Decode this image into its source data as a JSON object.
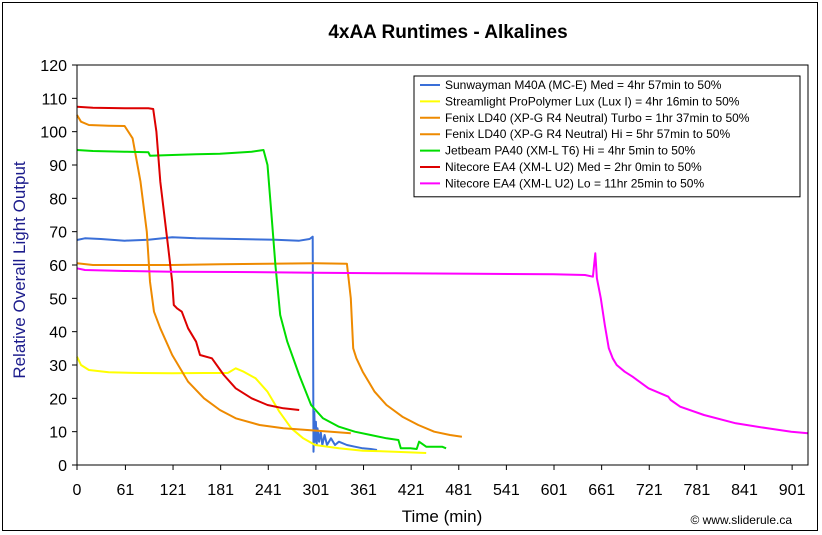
{
  "chart_data": {
    "type": "line",
    "title": "4xAA Runtimes - Alkalines",
    "xlabel": "Time (min)",
    "ylabel": "Relative Overall Light Output",
    "credit": "© www.sliderule.ca",
    "xlim": [
      0,
      921
    ],
    "ylim": [
      0,
      120
    ],
    "xticks": [
      0,
      61,
      121,
      181,
      241,
      301,
      361,
      421,
      481,
      541,
      601,
      661,
      721,
      781,
      841,
      901
    ],
    "yticks": [
      0,
      10,
      20,
      30,
      40,
      50,
      60,
      70,
      80,
      90,
      100,
      110,
      120
    ],
    "grid": false,
    "legend_position": "top-right",
    "series": [
      {
        "name": "Sunwayman M40A (MC-E) Med = 4hr 57min to 50%",
        "color": "#3a6fd8",
        "points": [
          [
            0,
            67.5
          ],
          [
            10,
            68
          ],
          [
            30,
            67.8
          ],
          [
            60,
            67.3
          ],
          [
            90,
            67.6
          ],
          [
            120,
            68.3
          ],
          [
            150,
            68
          ],
          [
            200,
            67.8
          ],
          [
            250,
            67.6
          ],
          [
            280,
            67.3
          ],
          [
            293,
            67.8
          ],
          [
            297,
            68.5
          ],
          [
            298,
            4
          ],
          [
            299,
            16
          ],
          [
            300,
            7
          ],
          [
            301,
            13
          ],
          [
            302,
            6
          ],
          [
            303,
            11
          ],
          [
            305,
            7
          ],
          [
            307,
            10
          ],
          [
            309,
            6
          ],
          [
            312,
            9
          ],
          [
            315,
            6
          ],
          [
            320,
            8
          ],
          [
            325,
            6
          ],
          [
            330,
            7
          ],
          [
            340,
            6
          ],
          [
            350,
            5.5
          ],
          [
            360,
            5
          ],
          [
            370,
            4.8
          ],
          [
            378,
            4.5
          ]
        ]
      },
      {
        "name": "Streamlight ProPolymer Lux (Lux I) = 4hr 16min to 50%",
        "color": "#ffff00",
        "points": [
          [
            0,
            32.5
          ],
          [
            5,
            30
          ],
          [
            15,
            28.5
          ],
          [
            40,
            27.8
          ],
          [
            80,
            27.6
          ],
          [
            120,
            27.5
          ],
          [
            160,
            27.6
          ],
          [
            190,
            27.6
          ],
          [
            200,
            29
          ],
          [
            210,
            28
          ],
          [
            225,
            26
          ],
          [
            240,
            22
          ],
          [
            255,
            16
          ],
          [
            270,
            11
          ],
          [
            285,
            8
          ],
          [
            300,
            6
          ],
          [
            330,
            5
          ],
          [
            360,
            4.3
          ],
          [
            400,
            4
          ],
          [
            440,
            3.6
          ]
        ]
      },
      {
        "name": "Fenix LD40 (XP-G R4 Neutral) Turbo = 1hr 37min to 50%",
        "color": "#ee8a00",
        "points": [
          [
            0,
            105
          ],
          [
            5,
            103
          ],
          [
            15,
            102
          ],
          [
            40,
            101.8
          ],
          [
            60,
            101.7
          ],
          [
            70,
            98
          ],
          [
            80,
            85
          ],
          [
            88,
            70
          ],
          [
            92,
            55
          ],
          [
            97,
            46
          ],
          [
            105,
            41
          ],
          [
            120,
            33
          ],
          [
            140,
            25
          ],
          [
            160,
            20
          ],
          [
            180,
            16.5
          ],
          [
            200,
            14
          ],
          [
            230,
            12
          ],
          [
            260,
            11
          ],
          [
            290,
            10.5
          ],
          [
            320,
            10
          ],
          [
            345,
            9.5
          ]
        ]
      },
      {
        "name": "Fenix LD40 (XP-G R4 Neutral) Hi = 5hr 57min to 50%",
        "color": "#ee8a00",
        "points": [
          [
            0,
            60.5
          ],
          [
            20,
            60
          ],
          [
            60,
            60
          ],
          [
            120,
            60
          ],
          [
            180,
            60.2
          ],
          [
            240,
            60.4
          ],
          [
            300,
            60.5
          ],
          [
            340,
            60.4
          ],
          [
            345,
            50
          ],
          [
            348,
            35
          ],
          [
            352,
            32
          ],
          [
            360,
            28
          ],
          [
            375,
            22
          ],
          [
            390,
            18
          ],
          [
            410,
            14.5
          ],
          [
            430,
            12
          ],
          [
            450,
            10
          ],
          [
            470,
            9
          ],
          [
            485,
            8.5
          ]
        ]
      },
      {
        "name": "Jetbeam PA40 (XM-L T6) Hi = 4hr 5min to 50%",
        "color": "#00dd00",
        "points": [
          [
            0,
            94.5
          ],
          [
            20,
            94.2
          ],
          [
            60,
            94
          ],
          [
            90,
            93.8
          ],
          [
            92,
            92.8
          ],
          [
            120,
            93
          ],
          [
            150,
            93.2
          ],
          [
            180,
            93.4
          ],
          [
            220,
            94
          ],
          [
            235,
            94.5
          ],
          [
            240,
            90
          ],
          [
            245,
            75
          ],
          [
            250,
            60
          ],
          [
            256,
            45
          ],
          [
            265,
            37
          ],
          [
            280,
            27
          ],
          [
            295,
            18
          ],
          [
            310,
            14
          ],
          [
            330,
            11.5
          ],
          [
            350,
            10
          ],
          [
            370,
            9
          ],
          [
            390,
            8
          ],
          [
            405,
            7.5
          ],
          [
            408,
            5
          ],
          [
            420,
            5
          ],
          [
            428,
            4.8
          ],
          [
            431,
            7
          ],
          [
            440,
            5.5
          ],
          [
            460,
            5.5
          ],
          [
            465,
            5
          ]
        ]
      },
      {
        "name": "Nitecore EA4 (XM-L U2) Med = 2hr 0min to 50%",
        "color": "#dd0000",
        "points": [
          [
            0,
            107.5
          ],
          [
            20,
            107.2
          ],
          [
            60,
            107
          ],
          [
            90,
            107
          ],
          [
            96,
            106.8
          ],
          [
            100,
            100
          ],
          [
            105,
            85
          ],
          [
            110,
            75
          ],
          [
            115,
            65
          ],
          [
            120,
            55
          ],
          [
            122,
            48
          ],
          [
            126,
            47
          ],
          [
            132,
            46
          ],
          [
            140,
            41
          ],
          [
            150,
            37
          ],
          [
            155,
            33
          ],
          [
            170,
            32
          ],
          [
            185,
            27
          ],
          [
            200,
            23
          ],
          [
            220,
            20
          ],
          [
            240,
            18
          ],
          [
            260,
            17
          ],
          [
            280,
            16.5
          ]
        ]
      },
      {
        "name": "Nitecore EA4 (XM-L U2) Lo = 11hr 25min to 50%",
        "color": "#ff00ff",
        "points": [
          [
            0,
            59
          ],
          [
            10,
            58.5
          ],
          [
            60,
            58.2
          ],
          [
            120,
            58
          ],
          [
            200,
            57.9
          ],
          [
            300,
            57.7
          ],
          [
            400,
            57.5
          ],
          [
            500,
            57.4
          ],
          [
            600,
            57.2
          ],
          [
            640,
            57
          ],
          [
            650,
            56.5
          ],
          [
            653,
            63.5
          ],
          [
            655,
            56
          ],
          [
            660,
            50
          ],
          [
            665,
            42
          ],
          [
            670,
            35
          ],
          [
            675,
            32
          ],
          [
            680,
            30
          ],
          [
            690,
            28
          ],
          [
            700,
            26.5
          ],
          [
            720,
            23
          ],
          [
            745,
            20.5
          ],
          [
            748,
            19.5
          ],
          [
            760,
            17.5
          ],
          [
            790,
            15
          ],
          [
            830,
            12.5
          ],
          [
            870,
            11
          ],
          [
            900,
            10
          ],
          [
            921,
            9.5
          ]
        ]
      }
    ]
  }
}
